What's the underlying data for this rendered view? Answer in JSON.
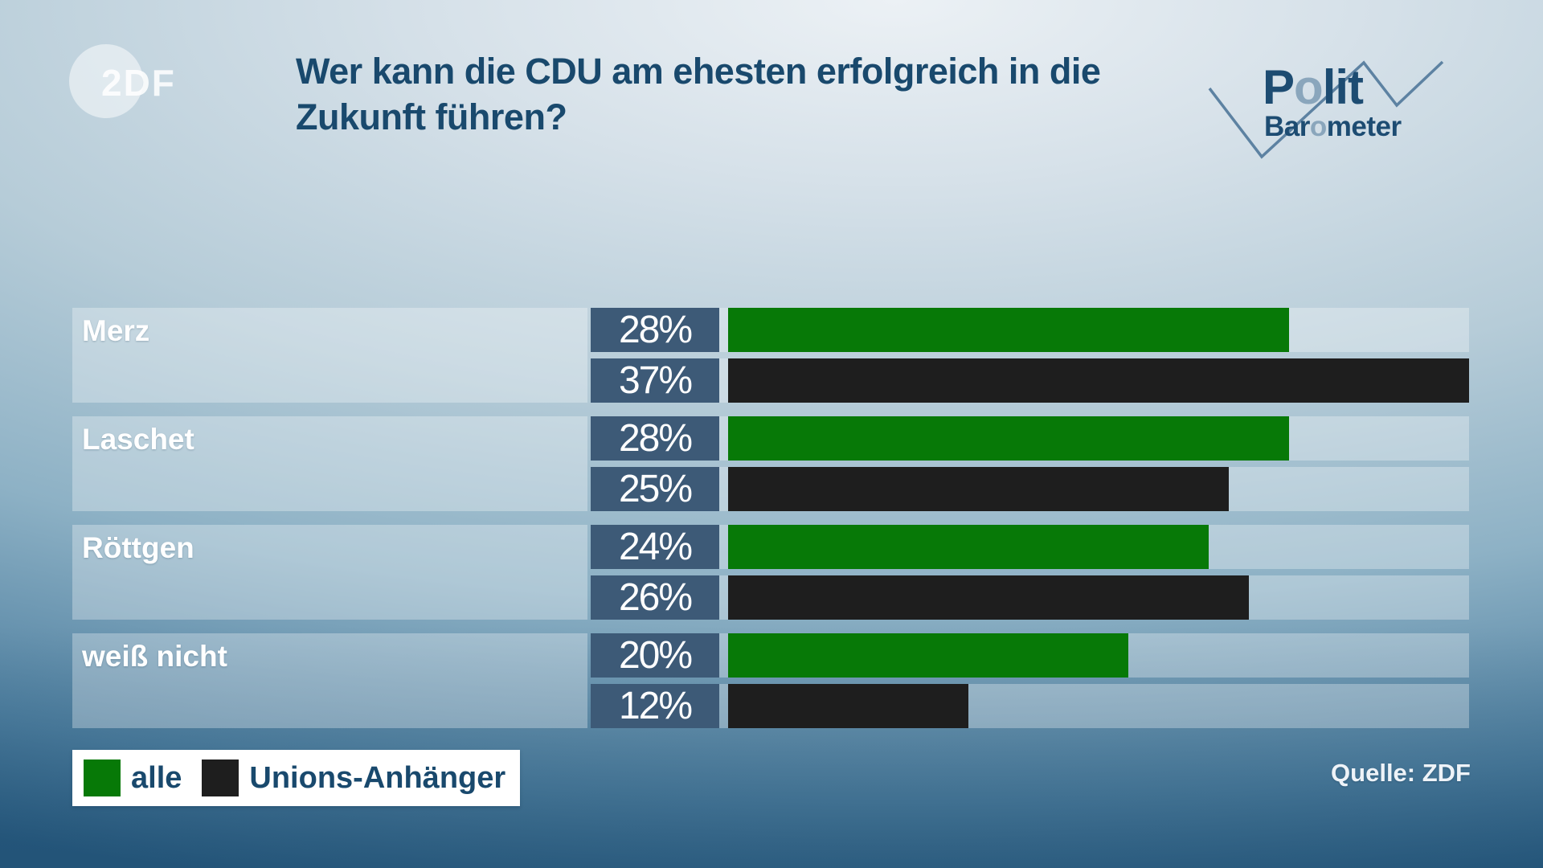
{
  "header": {
    "zdf_logo_text": "2DF",
    "title_lines": [
      "Wer kann die CDU am ehesten erfolgreich in die",
      "Zukunft führen?"
    ],
    "program_logo": {
      "polit_parts": [
        "P",
        "o",
        "lit"
      ],
      "barometer_parts": [
        "Bar",
        "o",
        "meter"
      ]
    }
  },
  "chart_data": {
    "type": "bar",
    "orientation": "horizontal",
    "title": "Wer kann die CDU am ehesten erfolgreich in die Zukunft führen?",
    "categories": [
      "Merz",
      "Laschet",
      "Röttgen",
      "weiß nicht"
    ],
    "series": [
      {
        "name": "alle",
        "color": "#077907",
        "values": [
          28,
          28,
          24,
          20
        ]
      },
      {
        "name": "Unions-Anhänger",
        "color": "#1e1e1e",
        "values": [
          37,
          25,
          26,
          12
        ]
      }
    ],
    "value_suffix": "%",
    "xlim": [
      0,
      37
    ],
    "grid": false,
    "legend_position": "bottom-left",
    "value_label_box_color": "#3d5a77",
    "source": "Quelle: ZDF"
  },
  "footer": {
    "source": "Quelle: ZDF"
  },
  "colors": {
    "title_text": "#19496d",
    "bar_green": "#077907",
    "bar_black": "#1e1e1e",
    "value_box": "#3d5a77",
    "zigzag_line": "#5d82a2",
    "background_bottom": "#2a5d83"
  }
}
